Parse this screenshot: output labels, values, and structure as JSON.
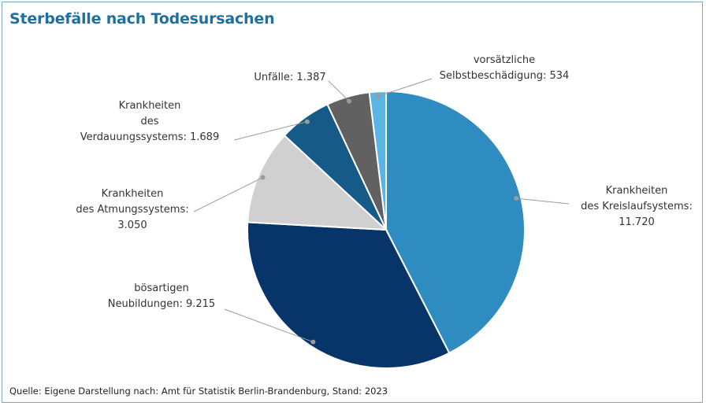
{
  "chart_data": {
    "type": "pie",
    "title": "Sterbefälle nach Todesursachen",
    "source": "Quelle: Eigene Darstellung nach: Amt für Statistik Berlin-Brandenburg, Stand: 2023",
    "slices": [
      {
        "label_lines": [
          "Krankheiten",
          "des Kreislaufsystems:",
          "11.720"
        ],
        "value": 11720,
        "color": "#2e8cc0"
      },
      {
        "label_lines": [
          "bösartigen",
          "Neubildungen: 9.215"
        ],
        "value": 9215,
        "color": "#073469"
      },
      {
        "label_lines": [
          "Krankheiten",
          "des Atmungssystems:",
          "3.050"
        ],
        "value": 3050,
        "color": "#d0d0d0"
      },
      {
        "label_lines": [
          "Krankheiten",
          "des",
          "Verdauungssystems: 1.689"
        ],
        "value": 1689,
        "color": "#165a88"
      },
      {
        "label_lines": [
          "Unfälle: 1.387"
        ],
        "value": 1387,
        "color": "#616161"
      },
      {
        "label_lines": [
          "vorsätzliche",
          "Selbstbeschädigung: 534"
        ],
        "value": 534,
        "color": "#5ab5e2"
      }
    ]
  }
}
